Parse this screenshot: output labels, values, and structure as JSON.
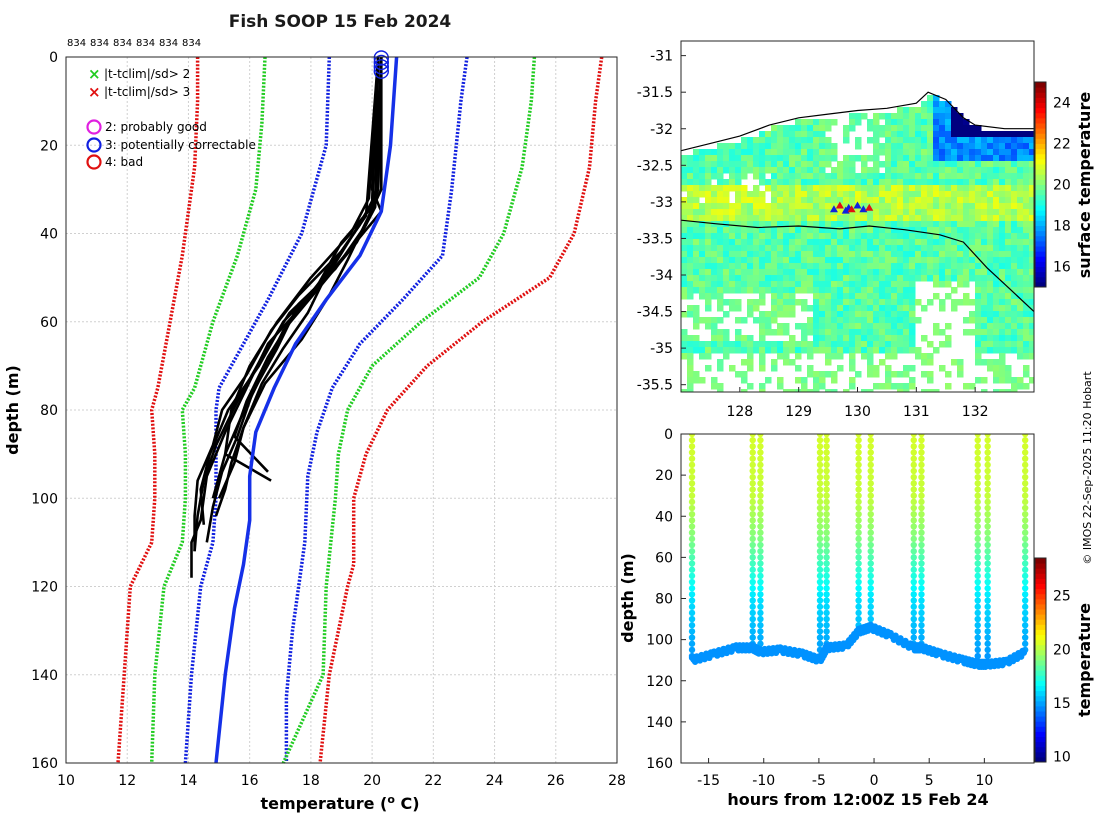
{
  "profile_chart": {
    "type": "line",
    "title": "Fish SOOP 15 Feb 2024",
    "xlabel": "temperature (",
    "xlabel_unit": "o",
    "xlabel_end": " C)",
    "ylabel": "depth (m)",
    "xlim": [
      10,
      28
    ],
    "ylim": [
      0,
      160
    ],
    "xticks": [
      "10",
      "12",
      "14",
      "16",
      "18",
      "20",
      "22",
      "24",
      "26",
      "28"
    ],
    "yticks": [
      "0",
      "20",
      "40",
      "60",
      "80",
      "100",
      "120",
      "140",
      "160"
    ],
    "station_ids": [
      "834",
      "834",
      "834",
      "834",
      "834",
      "834"
    ],
    "legend": {
      "markers": [
        {
          "symbol": "×",
          "color": "#22cc22",
          "label": "|t-tclim|/sd> 2"
        },
        {
          "symbol": "×",
          "color": "#e01010",
          "label": "|t-tclim|/sd> 3"
        }
      ],
      "flags": [
        {
          "color": "#e020e0",
          "label": "2: probably good"
        },
        {
          "color": "#1020e0",
          "label": "3: potentially correctable"
        },
        {
          "color": "#e01010",
          "label": "4: bad"
        }
      ]
    },
    "climatology": [
      {
        "name": "-3sd",
        "color": "#e01010",
        "depth": [
          0,
          10,
          25,
          45,
          60,
          75,
          80,
          90,
          100,
          110,
          120,
          140,
          160
        ],
        "temp": [
          14.3,
          14.3,
          14.2,
          13.8,
          13.4,
          13.0,
          12.8,
          12.9,
          12.9,
          12.8,
          12.1,
          11.9,
          11.7
        ]
      },
      {
        "name": "-2sd",
        "color": "#22cc22",
        "depth": [
          0,
          15,
          30,
          45,
          60,
          75,
          80,
          90,
          100,
          110,
          120,
          140,
          160
        ],
        "temp": [
          16.5,
          16.4,
          16.2,
          15.6,
          14.8,
          14.2,
          13.8,
          13.9,
          13.9,
          13.8,
          13.2,
          12.9,
          12.8
        ]
      },
      {
        "name": "-1sd",
        "color": "#1020e0",
        "depth": [
          0,
          20,
          40,
          55,
          65,
          75,
          80,
          90,
          100,
          110,
          120,
          140,
          160
        ],
        "temp": [
          18.6,
          18.5,
          17.7,
          16.6,
          15.8,
          15.0,
          14.9,
          14.9,
          14.9,
          14.8,
          14.4,
          14.1,
          13.9
        ]
      },
      {
        "name": "+1sd",
        "color": "#1020e0",
        "depth": [
          0,
          10,
          30,
          45,
          55,
          65,
          75,
          85,
          95,
          110,
          130,
          145,
          160
        ],
        "temp": [
          23.1,
          22.9,
          22.6,
          22.3,
          21.0,
          19.6,
          18.7,
          18.2,
          17.9,
          17.8,
          17.4,
          17.2,
          17.2
        ]
      },
      {
        "name": "+2sd",
        "color": "#22cc22",
        "depth": [
          0,
          10,
          25,
          40,
          50,
          60,
          70,
          80,
          90,
          100,
          120,
          140,
          160
        ],
        "temp": [
          25.3,
          25.2,
          24.9,
          24.3,
          23.5,
          21.6,
          20.0,
          19.2,
          18.9,
          18.8,
          18.5,
          18.4,
          17.1
        ]
      },
      {
        "name": "+3sd",
        "color": "#e01010",
        "depth": [
          0,
          10,
          25,
          40,
          50,
          60,
          70,
          80,
          90,
          100,
          115,
          120,
          140,
          160
        ],
        "temp": [
          27.5,
          27.3,
          27.1,
          26.6,
          25.8,
          23.6,
          21.8,
          20.5,
          19.8,
          19.4,
          19.4,
          19.2,
          18.6,
          18.3
        ]
      }
    ],
    "mean_profile": {
      "color": "#1530e8",
      "depth": [
        0,
        20,
        35,
        45,
        55,
        65,
        75,
        85,
        95,
        105,
        115,
        125,
        140,
        160
      ],
      "temp": [
        20.8,
        20.6,
        20.3,
        19.6,
        18.5,
        17.5,
        16.8,
        16.2,
        16.0,
        16.0,
        15.8,
        15.5,
        15.2,
        14.9
      ]
    },
    "observed_profiles": [
      {
        "depth": [
          0,
          30,
          35,
          45,
          55,
          65,
          75,
          85,
          95,
          105,
          110,
          118
        ],
        "temp": [
          20.2,
          20.0,
          20.3,
          19.1,
          17.9,
          16.6,
          15.9,
          15.2,
          14.6,
          14.4,
          14.1,
          14.1
        ]
      },
      {
        "depth": [
          0,
          32,
          40,
          50,
          58,
          68,
          78,
          88,
          96,
          104,
          112
        ],
        "temp": [
          20.3,
          20.1,
          19.4,
          18.5,
          17.3,
          16.4,
          15.6,
          14.9,
          14.5,
          14.3,
          14.2
        ]
      },
      {
        "depth": [
          0,
          30,
          38,
          48,
          56,
          66,
          76,
          86,
          94,
          102,
          110
        ],
        "temp": [
          20.3,
          20.2,
          19.8,
          18.8,
          17.6,
          16.9,
          16.1,
          15.6,
          15.1,
          14.8,
          14.6
        ]
      },
      {
        "depth": [
          0,
          34,
          42,
          52,
          60,
          70,
          80,
          90,
          98,
          106
        ],
        "temp": [
          20.2,
          20.0,
          19.0,
          18.2,
          17.1,
          16.3,
          15.3,
          14.7,
          14.4,
          14.5
        ]
      },
      {
        "depth": [
          0,
          30,
          36,
          46,
          54,
          64,
          74,
          84,
          92,
          98,
          104
        ],
        "temp": [
          20.3,
          20.3,
          19.9,
          19.2,
          18.6,
          17.7,
          16.5,
          15.8,
          15.4,
          15.2,
          14.9
        ]
      },
      {
        "depth": [
          0,
          32,
          40,
          50,
          60,
          70,
          80,
          90,
          96
        ],
        "temp": [
          20.2,
          19.9,
          19.3,
          18.0,
          16.9,
          16.0,
          15.4,
          15.2,
          16.7
        ]
      },
      {
        "depth": [
          0,
          34,
          42,
          52,
          62,
          72,
          82,
          90,
          100
        ],
        "temp": [
          20.2,
          20.1,
          19.5,
          18.3,
          17.1,
          16.4,
          15.7,
          15.2,
          14.8
        ]
      },
      {
        "depth": [
          0,
          36,
          44,
          54,
          62,
          72,
          80,
          88,
          96,
          104,
          112
        ],
        "temp": [
          20.2,
          19.8,
          19.0,
          17.6,
          16.7,
          15.9,
          15.1,
          14.8,
          14.3,
          14.2,
          14.2
        ]
      },
      {
        "depth": [
          0,
          30,
          38,
          48,
          58,
          66,
          74,
          84,
          92,
          100
        ],
        "temp": [
          20.3,
          20.2,
          19.6,
          18.6,
          17.9,
          17.1,
          16.4,
          15.8,
          15.5,
          15.0
        ]
      },
      {
        "depth": [
          0,
          33,
          40,
          50,
          58,
          68,
          78,
          86,
          94
        ],
        "temp": [
          20.2,
          20.0,
          19.4,
          18.4,
          17.5,
          16.6,
          15.9,
          15.5,
          16.6
        ]
      }
    ],
    "flag_markers": {
      "temp": 20.3,
      "depth": [
        0,
        1,
        2,
        3
      ]
    }
  },
  "map_chart": {
    "type": "heatmap",
    "xticks": [
      "128",
      "129",
      "130",
      "131",
      "132"
    ],
    "yticks": [
      "-31",
      "-31.5",
      "-32",
      "-32.5",
      "-33",
      "-33.5",
      "-34",
      "-34.5",
      "-35",
      "-35.5"
    ],
    "xlim": [
      127.0,
      133.0
    ],
    "ylim": [
      -35.6,
      -30.8
    ],
    "colorbar_label": "surface temperature",
    "colorbar_ticks": [
      "16",
      "18",
      "20",
      "22",
      "24"
    ],
    "colorbar_range": [
      15.0,
      25.0
    ],
    "coastline": {
      "lon": [
        127.0,
        127.5,
        128.0,
        128.5,
        129.0,
        129.5,
        130.0,
        130.5,
        131.0,
        131.2,
        131.5,
        131.8,
        132.0,
        132.5,
        133.0
      ],
      "lat": [
        -32.3,
        -32.2,
        -32.1,
        -31.95,
        -31.85,
        -31.8,
        -31.75,
        -31.72,
        -31.65,
        -31.5,
        -31.6,
        -31.85,
        -31.95,
        -32.0,
        -32.0
      ]
    },
    "track": {
      "lon": [
        127.0,
        127.6,
        128.3,
        129.0,
        129.7,
        130.2,
        130.8,
        131.4,
        131.8,
        132.2,
        132.6,
        133.0
      ],
      "lat": [
        -33.25,
        -33.3,
        -33.35,
        -33.33,
        -33.37,
        -33.33,
        -33.38,
        -33.45,
        -33.55,
        -33.9,
        -34.2,
        -34.5
      ]
    },
    "drops": {
      "lon": [
        129.6,
        129.7,
        129.8,
        129.85,
        129.9,
        130.0,
        130.1,
        130.2
      ],
      "lat": [
        -33.1,
        -33.05,
        -33.12,
        -33.08,
        -33.1,
        -33.05,
        -33.1,
        -33.08
      ]
    }
  },
  "section_chart": {
    "type": "scatter",
    "xlabel": "hours from 12:00Z 15 Feb 24",
    "ylabel": "depth (m)",
    "xlim": [
      -17.5,
      14.5
    ],
    "ylim": [
      0,
      160
    ],
    "xticks": [
      "-15",
      "-10",
      "-5",
      "0",
      "5",
      "10"
    ],
    "yticks": [
      "0",
      "20",
      "40",
      "60",
      "80",
      "100",
      "120",
      "140",
      "160"
    ],
    "colorbar_label": "temperature",
    "colorbar_ticks": [
      "10",
      "15",
      "20",
      "25"
    ],
    "colorbar_range": [
      9.5,
      28.5
    ],
    "drops": [
      {
        "hour": -16.5,
        "max_depth": 110
      },
      {
        "hour": -11.0,
        "max_depth": 104
      },
      {
        "hour": -10.3,
        "max_depth": 106
      },
      {
        "hour": -4.9,
        "max_depth": 110
      },
      {
        "hour": -4.3,
        "max_depth": 104
      },
      {
        "hour": -1.4,
        "max_depth": 96
      },
      {
        "hour": -0.3,
        "max_depth": 94
      },
      {
        "hour": 3.6,
        "max_depth": 104
      },
      {
        "hour": 4.3,
        "max_depth": 104
      },
      {
        "hour": 9.4,
        "max_depth": 112
      },
      {
        "hour": 10.3,
        "max_depth": 112
      },
      {
        "hour": 13.7,
        "max_depth": 106
      }
    ],
    "bottom": {
      "hour": [
        -16.5,
        -14.5,
        -12.5,
        -11.0,
        -10.3,
        -8.5,
        -6.5,
        -4.9,
        -4.3,
        -2.5,
        -1.4,
        -0.3,
        1.5,
        3.6,
        4.3,
        6.0,
        8.0,
        9.4,
        10.3,
        12.0,
        13.7
      ],
      "depth": [
        110,
        107,
        104,
        104,
        106,
        105,
        107,
        110,
        104,
        103,
        96,
        94,
        98,
        104,
        104,
        107,
        110,
        112,
        112,
        111,
        106
      ]
    }
  },
  "credit": "© IMOS 22-Sep-2025 11:20 Hobart"
}
